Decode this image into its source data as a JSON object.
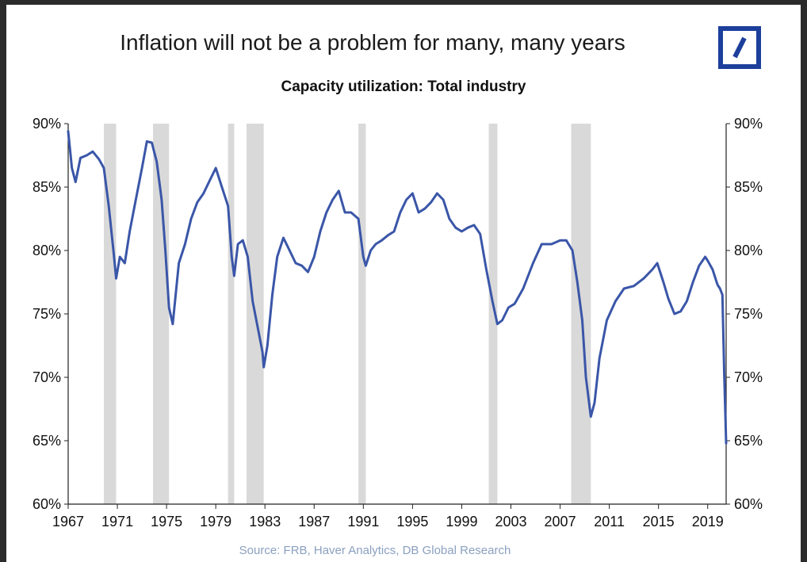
{
  "title": "Inflation will not be a problem for many, many years",
  "logo": {
    "name": "Deutsche Bank logo",
    "color": "#1d3f9c"
  },
  "source": "Source: FRB, Haver Analytics, DB Global Research",
  "chart_data": {
    "type": "line",
    "title": "Capacity utilization: Total industry",
    "xlabel": "",
    "ylabel": "",
    "xlim": [
      1967,
      2020.5
    ],
    "ylim": [
      60,
      90
    ],
    "y_ticks": [
      60,
      65,
      70,
      75,
      80,
      85,
      90
    ],
    "y_tick_labels": [
      "60%",
      "65%",
      "70%",
      "75%",
      "80%",
      "85%",
      "90%"
    ],
    "x_ticks": [
      1967,
      1971,
      1975,
      1979,
      1983,
      1987,
      1991,
      1995,
      1999,
      2003,
      2007,
      2011,
      2015,
      2019
    ],
    "x_tick_labels": [
      "1967",
      "1971",
      "1975",
      "1979",
      "1983",
      "1987",
      "1991",
      "1995",
      "1999",
      "2003",
      "2007",
      "2011",
      "2015",
      "2019"
    ],
    "grid": false,
    "axes": "left and right y-axes, identical scales",
    "line_color": "#3a56a8",
    "recession_color": "#d9d9d9",
    "recessions": [
      [
        1969.9,
        1970.9
      ],
      [
        1973.9,
        1975.2
      ],
      [
        1980.0,
        1980.5
      ],
      [
        1981.5,
        1982.9
      ],
      [
        1990.6,
        1991.2
      ],
      [
        2001.2,
        2001.9
      ],
      [
        2007.9,
        2009.5
      ]
    ],
    "series": [
      {
        "name": "Capacity utilization: Total industry",
        "x": [
          1967.0,
          1967.3,
          1967.6,
          1968.0,
          1968.5,
          1969.0,
          1969.5,
          1969.9,
          1970.3,
          1970.7,
          1970.9,
          1971.2,
          1971.6,
          1972.0,
          1972.5,
          1973.0,
          1973.4,
          1973.8,
          1974.2,
          1974.6,
          1974.9,
          1975.2,
          1975.5,
          1976.0,
          1976.5,
          1977.0,
          1977.5,
          1978.0,
          1978.5,
          1979.0,
          1979.5,
          1980.0,
          1980.3,
          1980.5,
          1980.8,
          1981.2,
          1981.6,
          1982.0,
          1982.4,
          1982.8,
          1982.9,
          1983.2,
          1983.6,
          1984.0,
          1984.5,
          1985.0,
          1985.5,
          1986.0,
          1986.5,
          1987.0,
          1987.5,
          1988.0,
          1988.5,
          1989.0,
          1989.5,
          1990.0,
          1990.6,
          1991.0,
          1991.2,
          1991.6,
          1992.0,
          1992.5,
          1993.0,
          1993.5,
          1994.0,
          1994.5,
          1995.0,
          1995.5,
          1996.0,
          1996.5,
          1997.0,
          1997.5,
          1998.0,
          1998.5,
          1999.0,
          1999.5,
          2000.0,
          2000.5,
          2001.0,
          2001.5,
          2001.9,
          2002.3,
          2002.8,
          2003.3,
          2004.0,
          2004.8,
          2005.5,
          2006.3,
          2007.0,
          2007.5,
          2008.0,
          2008.4,
          2008.8,
          2009.1,
          2009.5,
          2009.8,
          2010.2,
          2010.8,
          2011.5,
          2012.2,
          2013.0,
          2013.8,
          2014.5,
          2014.9,
          2015.4,
          2015.8,
          2016.3,
          2016.8,
          2017.3,
          2017.8,
          2018.3,
          2018.8,
          2019.0,
          2019.4,
          2019.8,
          2020.0,
          2020.2,
          2020.35,
          2020.5
        ],
        "y": [
          89.4,
          86.5,
          85.4,
          87.3,
          87.5,
          87.8,
          87.2,
          86.5,
          83.5,
          79.8,
          77.8,
          79.5,
          79.0,
          81.5,
          84.0,
          86.5,
          88.6,
          88.5,
          87.0,
          84.0,
          80.0,
          75.5,
          74.2,
          79.0,
          80.5,
          82.5,
          83.8,
          84.5,
          85.5,
          86.5,
          85.0,
          83.5,
          79.5,
          78.0,
          80.5,
          80.8,
          79.5,
          76.0,
          74.0,
          72.0,
          70.8,
          72.5,
          76.5,
          79.5,
          81.0,
          80.0,
          79.0,
          78.8,
          78.3,
          79.5,
          81.5,
          83.0,
          84.0,
          84.7,
          83.0,
          83.0,
          82.5,
          79.5,
          78.8,
          80.0,
          80.5,
          80.8,
          81.2,
          81.5,
          83.0,
          84.0,
          84.5,
          83.0,
          83.3,
          83.8,
          84.5,
          84.0,
          82.5,
          81.8,
          81.5,
          81.8,
          82.0,
          81.3,
          78.5,
          76.0,
          74.2,
          74.5,
          75.5,
          75.8,
          77.0,
          79.0,
          80.5,
          80.5,
          80.8,
          80.8,
          80.0,
          77.5,
          74.5,
          70.0,
          66.9,
          68.0,
          71.5,
          74.5,
          76.0,
          77.0,
          77.2,
          77.8,
          78.5,
          79.0,
          77.5,
          76.2,
          75.0,
          75.2,
          76.0,
          77.5,
          78.8,
          79.5,
          79.2,
          78.5,
          77.3,
          77.0,
          76.5,
          70.0,
          64.8
        ]
      }
    ]
  }
}
